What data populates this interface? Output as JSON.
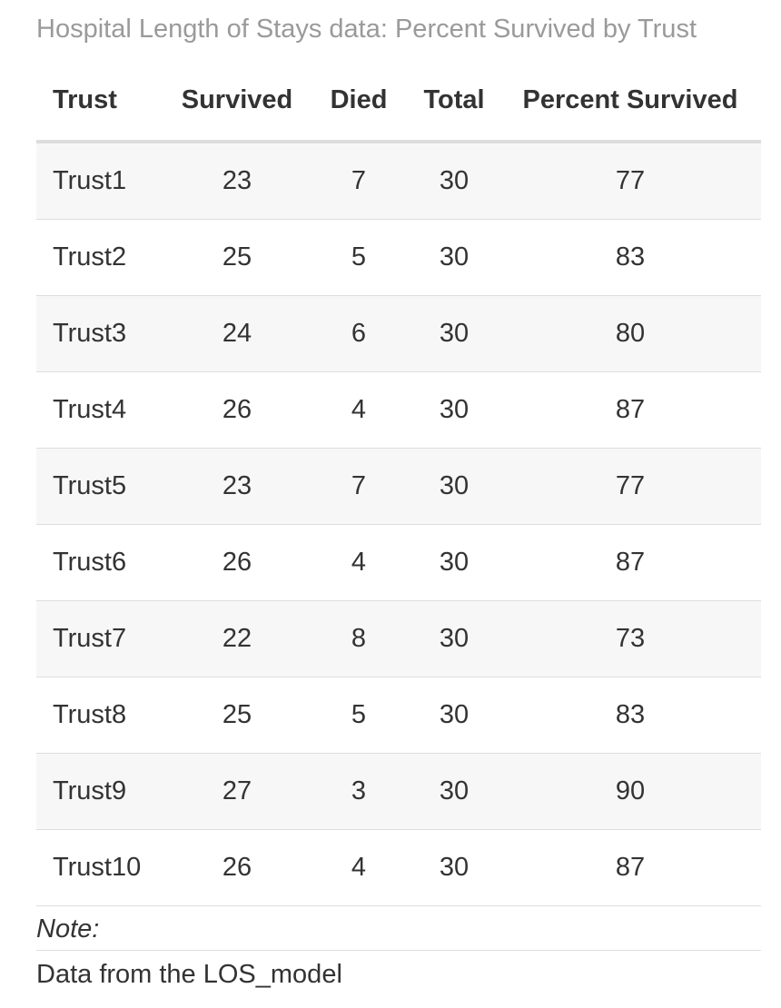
{
  "table": {
    "caption": "Hospital Length of Stays data: Percent Survived by Trust",
    "headers": [
      "Trust",
      "Survived",
      "Died",
      "Total",
      "Percent Survived"
    ],
    "rows": [
      [
        "Trust1",
        "23",
        "7",
        "30",
        "77"
      ],
      [
        "Trust2",
        "25",
        "5",
        "30",
        "83"
      ],
      [
        "Trust3",
        "24",
        "6",
        "30",
        "80"
      ],
      [
        "Trust4",
        "26",
        "4",
        "30",
        "87"
      ],
      [
        "Trust5",
        "23",
        "7",
        "30",
        "77"
      ],
      [
        "Trust6",
        "26",
        "4",
        "30",
        "87"
      ],
      [
        "Trust7",
        "22",
        "8",
        "30",
        "73"
      ],
      [
        "Trust8",
        "25",
        "5",
        "30",
        "83"
      ],
      [
        "Trust9",
        "27",
        "3",
        "30",
        "90"
      ],
      [
        "Trust10",
        "26",
        "4",
        "30",
        "87"
      ]
    ],
    "footnote_label": "Note:",
    "footnote_text": "Data from the LOS_model"
  },
  "colors": {
    "text": "#333333",
    "caption": "#9a9a9a",
    "stripe": "#f7f7f7",
    "rule": "#dddddd"
  }
}
